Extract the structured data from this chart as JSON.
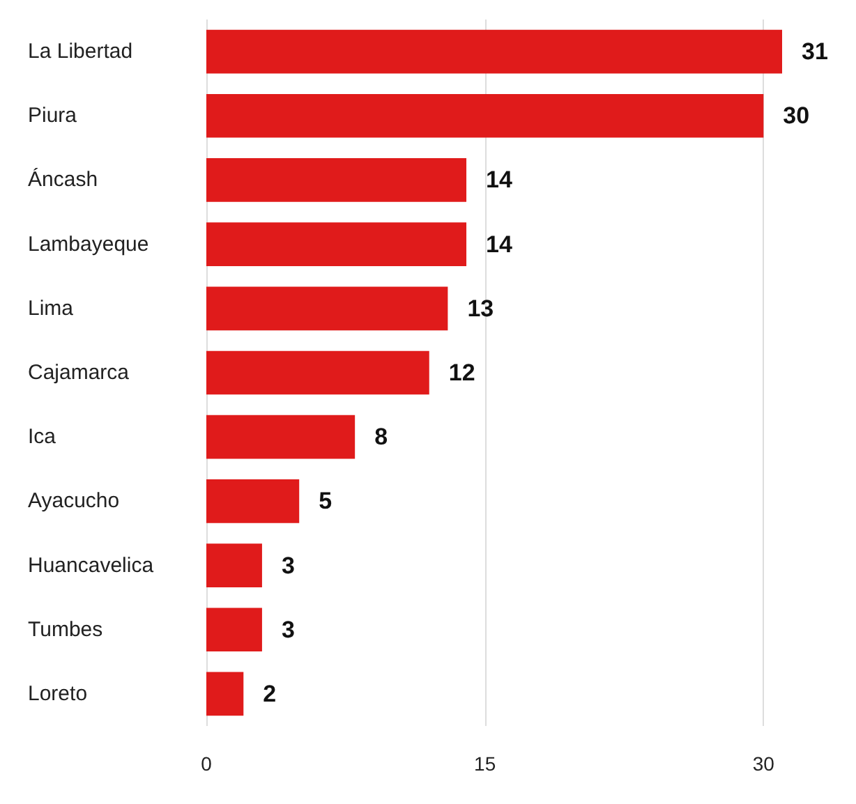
{
  "chart_data": {
    "type": "bar",
    "orientation": "horizontal",
    "categories": [
      "La Libertad",
      "Piura",
      "Áncash",
      "Lambayeque",
      "Lima",
      "Cajamarca",
      "Ica",
      "Ayacucho",
      "Huancavelica",
      "Tumbes",
      "Loreto"
    ],
    "values": [
      31,
      30,
      14,
      14,
      13,
      12,
      8,
      5,
      3,
      3,
      2
    ],
    "color": "#e01b1b",
    "xlim": [
      0,
      31
    ],
    "xticks": [
      0,
      15,
      30
    ],
    "grid": "x",
    "data_labels": true
  }
}
